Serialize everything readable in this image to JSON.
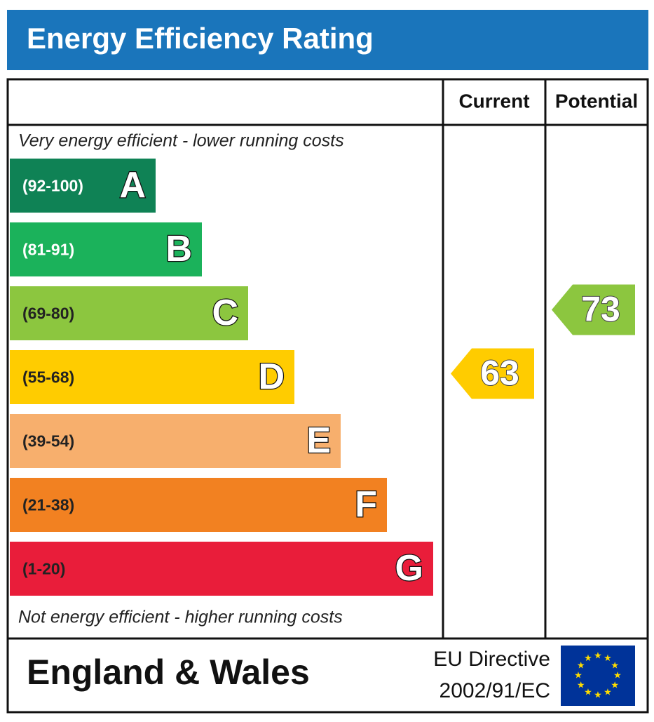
{
  "chart_data": {
    "type": "energy-rating",
    "title": "Energy Efficiency Rating",
    "columns": [
      "Current",
      "Potential"
    ],
    "top_note": "Very energy efficient - lower running costs",
    "bottom_note": "Not energy efficient - higher running costs",
    "bands": [
      {
        "range": "(92-100)",
        "letter": "A",
        "color": "#0f8255",
        "label_color": "#ffffff"
      },
      {
        "range": "(81-91)",
        "letter": "B",
        "color": "#1bb25b",
        "label_color": "#ffffff"
      },
      {
        "range": "(69-80)",
        "letter": "C",
        "color": "#8cc63f",
        "label_color": "#222222"
      },
      {
        "range": "(55-68)",
        "letter": "D",
        "color": "#ffcc00",
        "label_color": "#222222"
      },
      {
        "range": "(39-54)",
        "letter": "E",
        "color": "#f7af6d",
        "label_color": "#222222"
      },
      {
        "range": "(21-38)",
        "letter": "F",
        "color": "#f28121",
        "label_color": "#222222"
      },
      {
        "range": "(1-20)",
        "letter": "G",
        "color": "#e91d3a",
        "label_color": "#222222"
      }
    ],
    "current": {
      "value": 63,
      "color": "#ffcc00"
    },
    "potential": {
      "value": 73,
      "color": "#8cc63f"
    },
    "footer": {
      "region": "England & Wales",
      "directive_line1": "EU Directive",
      "directive_line2": "2002/91/EC"
    }
  }
}
